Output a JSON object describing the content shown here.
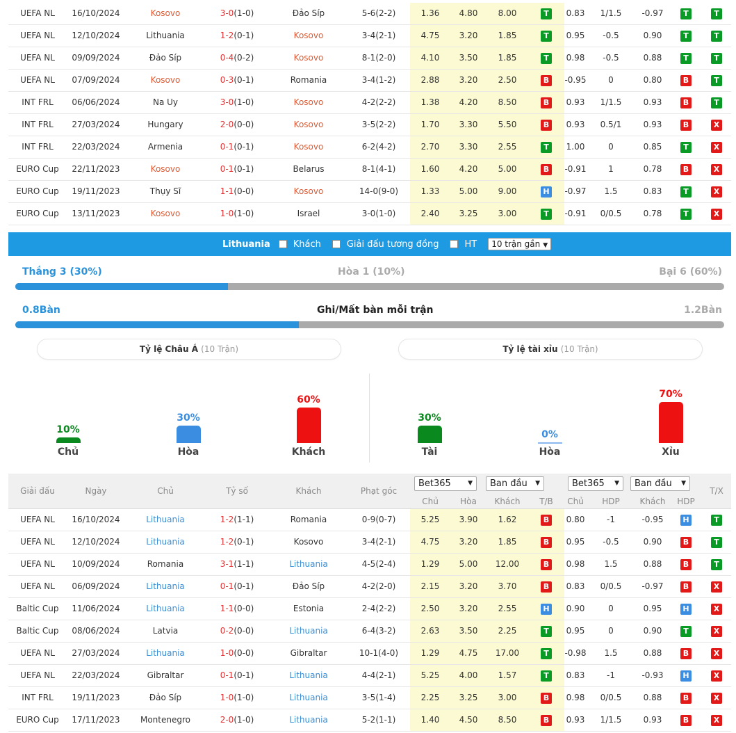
{
  "kosovo_rows": [
    {
      "league": "UEFA NL",
      "date": "16/10/2024",
      "home": "Kosovo",
      "home_hl": true,
      "score": "3-0",
      "ht": "(1-0)",
      "away": "Đảo Síp",
      "away_hl": false,
      "corner": "5-6(2-2)",
      "o1": "1.36",
      "o2": "4.80",
      "o3": "8.00",
      "tb": "T",
      "h1": "0.83",
      "h2": "1/1.5",
      "h3": "-0.97",
      "hb": "T",
      "tx": "T"
    },
    {
      "league": "UEFA NL",
      "date": "12/10/2024",
      "home": "Lithuania",
      "home_hl": false,
      "score": "1-2",
      "ht": "(0-1)",
      "away": "Kosovo",
      "away_hl": true,
      "corner": "3-4(2-1)",
      "o1": "4.75",
      "o2": "3.20",
      "o3": "1.85",
      "tb": "T",
      "h1": "0.95",
      "h2": "-0.5",
      "h3": "0.90",
      "hb": "T",
      "tx": "T"
    },
    {
      "league": "UEFA NL",
      "date": "09/09/2024",
      "home": "Đảo Síp",
      "home_hl": false,
      "score": "0-4",
      "ht": "(0-2)",
      "away": "Kosovo",
      "away_hl": true,
      "corner": "8-1(2-0)",
      "o1": "4.10",
      "o2": "3.50",
      "o3": "1.85",
      "tb": "T",
      "h1": "0.98",
      "h2": "-0.5",
      "h3": "0.88",
      "hb": "T",
      "tx": "T"
    },
    {
      "league": "UEFA NL",
      "date": "07/09/2024",
      "home": "Kosovo",
      "home_hl": true,
      "score": "0-3",
      "ht": "(0-1)",
      "away": "Romania",
      "away_hl": false,
      "corner": "3-4(1-2)",
      "o1": "2.88",
      "o2": "3.20",
      "o3": "2.50",
      "tb": "B",
      "h1": "-0.95",
      "h2": "0",
      "h3": "0.80",
      "hb": "B",
      "tx": "T"
    },
    {
      "league": "INT FRL",
      "date": "06/06/2024",
      "home": "Na Uy",
      "home_hl": false,
      "score": "3-0",
      "ht": "(1-0)",
      "away": "Kosovo",
      "away_hl": true,
      "corner": "4-2(2-2)",
      "o1": "1.38",
      "o2": "4.20",
      "o3": "8.50",
      "tb": "B",
      "h1": "0.93",
      "h2": "1/1.5",
      "h3": "0.93",
      "hb": "B",
      "tx": "T"
    },
    {
      "league": "INT FRL",
      "date": "27/03/2024",
      "home": "Hungary",
      "home_hl": false,
      "score": "2-0",
      "ht": "(0-0)",
      "away": "Kosovo",
      "away_hl": true,
      "corner": "3-5(2-2)",
      "o1": "1.70",
      "o2": "3.30",
      "o3": "5.50",
      "tb": "B",
      "h1": "0.93",
      "h2": "0.5/1",
      "h3": "0.93",
      "hb": "B",
      "tx": "X"
    },
    {
      "league": "INT FRL",
      "date": "22/03/2024",
      "home": "Armenia",
      "home_hl": false,
      "score": "0-1",
      "ht": "(0-1)",
      "away": "Kosovo",
      "away_hl": true,
      "corner": "6-2(4-2)",
      "o1": "2.70",
      "o2": "3.30",
      "o3": "2.55",
      "tb": "T",
      "h1": "1.00",
      "h2": "0",
      "h3": "0.85",
      "hb": "T",
      "tx": "X"
    },
    {
      "league": "EURO Cup",
      "date": "22/11/2023",
      "home": "Kosovo",
      "home_hl": true,
      "score": "0-1",
      "ht": "(0-1)",
      "away": "Belarus",
      "away_hl": false,
      "corner": "8-1(4-1)",
      "o1": "1.60",
      "o2": "4.20",
      "o3": "5.00",
      "tb": "B",
      "h1": "-0.91",
      "h2": "1",
      "h3": "0.78",
      "hb": "B",
      "tx": "X"
    },
    {
      "league": "EURO Cup",
      "date": "19/11/2023",
      "home": "Thụy Sĩ",
      "home_hl": false,
      "score": "1-1",
      "ht": "(0-0)",
      "away": "Kosovo",
      "away_hl": true,
      "corner": "14-0(9-0)",
      "o1": "1.33",
      "o2": "5.00",
      "o3": "9.00",
      "tb": "H",
      "h1": "-0.97",
      "h2": "1.5",
      "h3": "0.83",
      "hb": "T",
      "tx": "X"
    },
    {
      "league": "EURO Cup",
      "date": "13/11/2023",
      "home": "Kosovo",
      "home_hl": true,
      "score": "1-0",
      "ht": "(1-0)",
      "away": "Israel",
      "away_hl": false,
      "corner": "3-0(1-0)",
      "o1": "2.40",
      "o2": "3.25",
      "o3": "3.00",
      "tb": "T",
      "h1": "-0.91",
      "h2": "0/0.5",
      "h3": "0.78",
      "hb": "T",
      "tx": "X"
    }
  ],
  "filter": {
    "team": "Lithuania",
    "away_label": "Khách",
    "same_league_label": "Giải đấu tương đồng",
    "ht_label": "HT",
    "matches_select": "10 trận gần"
  },
  "record": {
    "win_label": "Thắng 3 (30%)",
    "draw_label": "Hòa 1 (10%)",
    "loss_label": "Bại 6 (60%)",
    "win_fraction": 0.3,
    "goals_for": "0.8Bàn",
    "goals_title": "Ghi/Mất bàn mỗi trận",
    "goals_against": "1.2Bàn",
    "goals_fraction": 0.4
  },
  "pills": {
    "asia_title": "Tỷ lệ Châu Á",
    "asia_count": "(10 Trận)",
    "ou_title": "Tỷ lệ tài xỉu",
    "ou_count": "(10 Trận)"
  },
  "asia_bars": [
    {
      "pct": "10%",
      "name": "Chủ",
      "value": 10,
      "color": "#0a8a1e"
    },
    {
      "pct": "30%",
      "name": "Hòa",
      "value": 30,
      "color": "#3a8de0"
    },
    {
      "pct": "60%",
      "name": "Khách",
      "value": 60,
      "color": "#ee1111"
    }
  ],
  "ou_bars": [
    {
      "pct": "30%",
      "name": "Tài",
      "value": 30,
      "color": "#0a8a1e"
    },
    {
      "pct": "0%",
      "name": "Hòa",
      "value": 0,
      "color": "#3a8de0"
    },
    {
      "pct": "70%",
      "name": "Xỉu",
      "value": 70,
      "color": "#ee1111"
    }
  ],
  "header": {
    "league": "Giải đấu",
    "date": "Ngày",
    "home": "Chủ",
    "score": "Tỷ số",
    "away": "Khách",
    "corner": "Phạt góc",
    "book1": "Bet365",
    "type1": "Ban đầu",
    "book2": "Bet365",
    "type2": "Ban đầu",
    "sub_home": "Chủ",
    "sub_draw": "Hòa",
    "sub_away": "Khách",
    "sub_tb": "T/B",
    "sub_home2": "Chủ",
    "sub_hdp": "HDP",
    "sub_away2": "Khách",
    "sub_hdp2": "HDP",
    "tx": "T/X"
  },
  "lithuania_rows": [
    {
      "league": "UEFA NL",
      "date": "16/10/2024",
      "home": "Lithuania",
      "home_hl": true,
      "score": "1-2",
      "ht": "(1-1)",
      "away": "Romania",
      "away_hl": false,
      "corner": "0-9(0-7)",
      "o1": "5.25",
      "o2": "3.90",
      "o3": "1.62",
      "tb": "B",
      "h1": "0.80",
      "h2": "-1",
      "h3": "-0.95",
      "hb": "H",
      "tx": "T"
    },
    {
      "league": "UEFA NL",
      "date": "12/10/2024",
      "home": "Lithuania",
      "home_hl": true,
      "score": "1-2",
      "ht": "(0-1)",
      "away": "Kosovo",
      "away_hl": false,
      "corner": "3-4(2-1)",
      "o1": "4.75",
      "o2": "3.20",
      "o3": "1.85",
      "tb": "B",
      "h1": "0.95",
      "h2": "-0.5",
      "h3": "0.90",
      "hb": "B",
      "tx": "T"
    },
    {
      "league": "UEFA NL",
      "date": "10/09/2024",
      "home": "Romania",
      "home_hl": false,
      "score": "3-1",
      "ht": "(1-1)",
      "away": "Lithuania",
      "away_hl": true,
      "corner": "4-5(2-4)",
      "o1": "1.29",
      "o2": "5.00",
      "o3": "12.00",
      "tb": "B",
      "h1": "0.98",
      "h2": "1.5",
      "h3": "0.88",
      "hb": "B",
      "tx": "T"
    },
    {
      "league": "UEFA NL",
      "date": "06/09/2024",
      "home": "Lithuania",
      "home_hl": true,
      "score": "0-1",
      "ht": "(0-1)",
      "away": "Đảo Síp",
      "away_hl": false,
      "corner": "4-2(2-0)",
      "o1": "2.15",
      "o2": "3.20",
      "o3": "3.70",
      "tb": "B",
      "h1": "0.83",
      "h2": "0/0.5",
      "h3": "-0.97",
      "hb": "B",
      "tx": "X"
    },
    {
      "league": "Baltic Cup",
      "date": "11/06/2024",
      "home": "Lithuania",
      "home_hl": true,
      "score": "1-1",
      "ht": "(0-0)",
      "away": "Estonia",
      "away_hl": false,
      "corner": "2-4(2-2)",
      "o1": "2.50",
      "o2": "3.20",
      "o3": "2.55",
      "tb": "H",
      "h1": "0.90",
      "h2": "0",
      "h3": "0.95",
      "hb": "H",
      "tx": "X"
    },
    {
      "league": "Baltic Cup",
      "date": "08/06/2024",
      "home": "Latvia",
      "home_hl": false,
      "score": "0-2",
      "ht": "(0-0)",
      "away": "Lithuania",
      "away_hl": true,
      "corner": "6-4(3-2)",
      "o1": "2.63",
      "o2": "3.50",
      "o3": "2.25",
      "tb": "T",
      "h1": "0.95",
      "h2": "0",
      "h3": "0.90",
      "hb": "T",
      "tx": "X"
    },
    {
      "league": "UEFA NL",
      "date": "27/03/2024",
      "home": "Lithuania",
      "home_hl": true,
      "score": "1-0",
      "ht": "(0-0)",
      "away": "Gibraltar",
      "away_hl": false,
      "corner": "10-1(4-0)",
      "o1": "1.29",
      "o2": "4.75",
      "o3": "17.00",
      "tb": "T",
      "h1": "-0.98",
      "h2": "1.5",
      "h3": "0.88",
      "hb": "B",
      "tx": "X"
    },
    {
      "league": "UEFA NL",
      "date": "22/03/2024",
      "home": "Gibraltar",
      "home_hl": false,
      "score": "0-1",
      "ht": "(0-1)",
      "away": "Lithuania",
      "away_hl": true,
      "corner": "4-4(2-1)",
      "o1": "5.25",
      "o2": "4.00",
      "o3": "1.57",
      "tb": "T",
      "h1": "0.83",
      "h2": "-1",
      "h3": "-0.93",
      "hb": "H",
      "tx": "X"
    },
    {
      "league": "INT FRL",
      "date": "19/11/2023",
      "home": "Đảo Síp",
      "home_hl": false,
      "score": "1-0",
      "ht": "(1-0)",
      "away": "Lithuania",
      "away_hl": true,
      "corner": "3-5(1-4)",
      "o1": "2.25",
      "o2": "3.25",
      "o3": "3.00",
      "tb": "B",
      "h1": "0.98",
      "h2": "0/0.5",
      "h3": "0.88",
      "hb": "B",
      "tx": "X"
    },
    {
      "league": "EURO Cup",
      "date": "17/11/2023",
      "home": "Montenegro",
      "home_hl": false,
      "score": "2-0",
      "ht": "(1-0)",
      "away": "Lithuania",
      "away_hl": true,
      "corner": "5-2(1-1)",
      "o1": "1.40",
      "o2": "4.50",
      "o3": "8.50",
      "tb": "B",
      "h1": "0.93",
      "h2": "1/1.5",
      "h3": "0.93",
      "hb": "B",
      "tx": "X"
    }
  ]
}
